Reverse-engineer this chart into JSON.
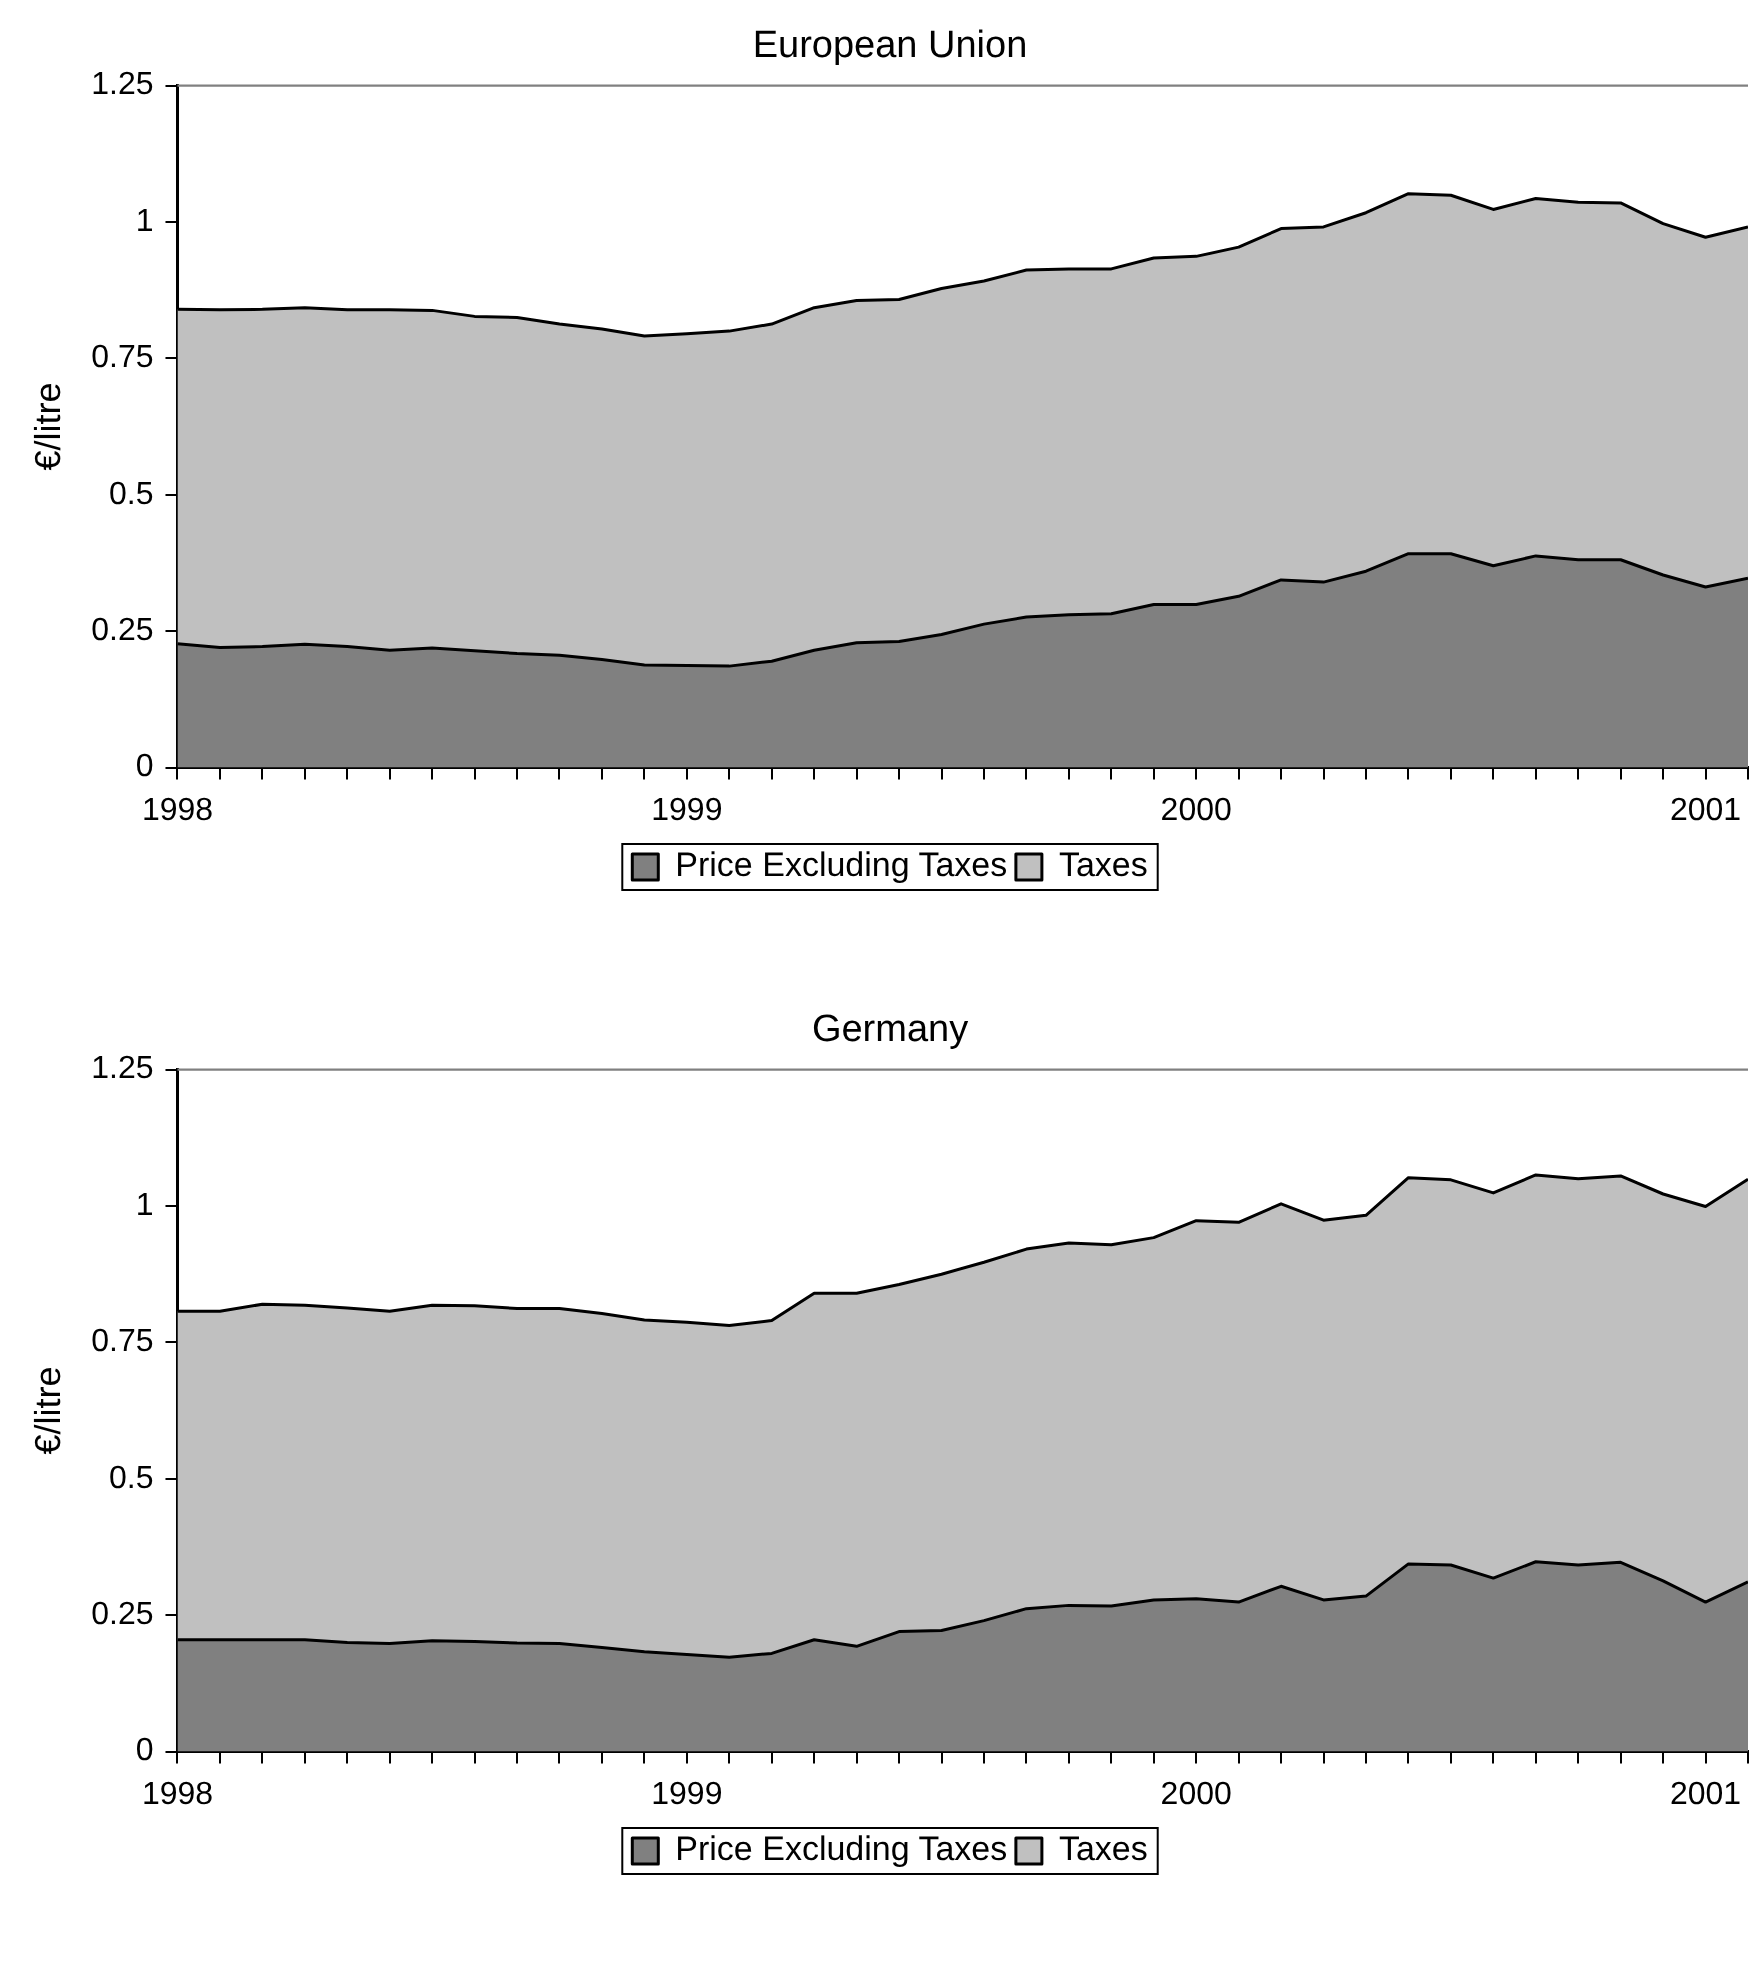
{
  "chart_data": [
    {
      "type": "area",
      "title": "European Union",
      "ylabel": "€/litre",
      "stacked": true,
      "legend": "bottom",
      "x": [
        "1998-01",
        "1998-02",
        "1998-03",
        "1998-04",
        "1998-05",
        "1998-06",
        "1998-07",
        "1998-08",
        "1998-09",
        "1998-10",
        "1998-11",
        "1998-12",
        "1999-01",
        "1999-02",
        "1999-03",
        "1999-04",
        "1999-05",
        "1999-06",
        "1999-07",
        "1999-08",
        "1999-09",
        "1999-10",
        "1999-11",
        "1999-12",
        "2000-01",
        "2000-02",
        "2000-03",
        "2000-04",
        "2000-05",
        "2000-06",
        "2000-07",
        "2000-08",
        "2000-09",
        "2000-10",
        "2000-11",
        "2000-12",
        "2001-01",
        "2001-02"
      ],
      "series": [
        {
          "name": "Price Excluding Taxes",
          "color": "#808080",
          "values": [
            0.227,
            0.22,
            0.222,
            0.226,
            0.222,
            0.215,
            0.219,
            0.214,
            0.209,
            0.206,
            0.198,
            0.188,
            0.187,
            0.186,
            0.195,
            0.215,
            0.229,
            0.231,
            0.244,
            0.263,
            0.276,
            0.28,
            0.282,
            0.299,
            0.299,
            0.314,
            0.344,
            0.34,
            0.36,
            0.392,
            0.392,
            0.37,
            0.388,
            0.381,
            0.381,
            0.353,
            0.331,
            0.347
          ]
        },
        {
          "name": "Taxes",
          "color": "#c0c0c0",
          "values": [
            0.613,
            0.619,
            0.618,
            0.617,
            0.617,
            0.624,
            0.619,
            0.613,
            0.616,
            0.607,
            0.606,
            0.603,
            0.608,
            0.614,
            0.618,
            0.628,
            0.627,
            0.627,
            0.634,
            0.629,
            0.636,
            0.634,
            0.632,
            0.635,
            0.638,
            0.64,
            0.644,
            0.651,
            0.657,
            0.66,
            0.657,
            0.653,
            0.655,
            0.655,
            0.654,
            0.644,
            0.641,
            0.644
          ]
        }
      ],
      "xlim": [
        "1998-01",
        "2001-02"
      ],
      "xticks": [
        {
          "value": "1998-01",
          "label": "1998"
        },
        {
          "value": "1998-02",
          "label": null
        },
        {
          "value": "1998-03",
          "label": null
        },
        {
          "value": "1998-04",
          "label": null
        },
        {
          "value": "1998-05",
          "label": null
        },
        {
          "value": "1998-06",
          "label": null
        },
        {
          "value": "1998-07",
          "label": null
        },
        {
          "value": "1998-08",
          "label": null
        },
        {
          "value": "1998-09",
          "label": null
        },
        {
          "value": "1998-10",
          "label": null
        },
        {
          "value": "1998-11",
          "label": null
        },
        {
          "value": "1998-12",
          "label": null
        },
        {
          "value": "1999-01",
          "label": "1999"
        },
        {
          "value": "1999-02",
          "label": null
        },
        {
          "value": "1999-03",
          "label": null
        },
        {
          "value": "1999-04",
          "label": null
        },
        {
          "value": "1999-05",
          "label": null
        },
        {
          "value": "1999-06",
          "label": null
        },
        {
          "value": "1999-07",
          "label": null
        },
        {
          "value": "1999-08",
          "label": null
        },
        {
          "value": "1999-09",
          "label": null
        },
        {
          "value": "1999-10",
          "label": null
        },
        {
          "value": "1999-11",
          "label": null
        },
        {
          "value": "1999-12",
          "label": null
        },
        {
          "value": "2000-01",
          "label": "2000"
        },
        {
          "value": "2000-02",
          "label": null
        },
        {
          "value": "2000-03",
          "label": null
        },
        {
          "value": "2000-04",
          "label": null
        },
        {
          "value": "2000-05",
          "label": null
        },
        {
          "value": "2000-06",
          "label": null
        },
        {
          "value": "2000-07",
          "label": null
        },
        {
          "value": "2000-08",
          "label": null
        },
        {
          "value": "2000-09",
          "label": null
        },
        {
          "value": "2000-10",
          "label": null
        },
        {
          "value": "2000-11",
          "label": null
        },
        {
          "value": "2000-12",
          "label": null
        },
        {
          "value": "2001-01",
          "label": "2001"
        },
        {
          "value": "2001-02",
          "label": null
        }
      ],
      "ylim": [
        0,
        1.25
      ],
      "yticks": [
        0,
        0.25,
        0.5,
        0.75,
        1,
        1.25
      ]
    },
    {
      "type": "area",
      "title": "Germany",
      "ylabel": "€/litre",
      "stacked": true,
      "legend": "bottom",
      "x": [
        "1998-01",
        "1998-02",
        "1998-03",
        "1998-04",
        "1998-05",
        "1998-06",
        "1998-07",
        "1998-08",
        "1998-09",
        "1998-10",
        "1998-11",
        "1998-12",
        "1999-01",
        "1999-02",
        "1999-03",
        "1999-04",
        "1999-05",
        "1999-06",
        "1999-07",
        "1999-08",
        "1999-09",
        "1999-10",
        "1999-11",
        "1999-12",
        "2000-01",
        "2000-02",
        "2000-03",
        "2000-04",
        "2000-05",
        "2000-06",
        "2000-07",
        "2000-08",
        "2000-09",
        "2000-10",
        "2000-11",
        "2000-12",
        "2001-01",
        "2001-02"
      ],
      "series": [
        {
          "name": "Price Excluding Taxes",
          "color": "#808080",
          "values": [
            0.205,
            0.205,
            0.205,
            0.205,
            0.2,
            0.198,
            0.203,
            0.202,
            0.199,
            0.198,
            0.191,
            0.183,
            0.178,
            0.173,
            0.18,
            0.205,
            0.193,
            0.22,
            0.222,
            0.24,
            0.262,
            0.268,
            0.267,
            0.278,
            0.28,
            0.274,
            0.303,
            0.278,
            0.285,
            0.344,
            0.342,
            0.318,
            0.348,
            0.342,
            0.347,
            0.313,
            0.274,
            0.311
          ]
        },
        {
          "name": "Taxes",
          "color": "#c0c0c0",
          "values": [
            0.602,
            0.602,
            0.615,
            0.613,
            0.613,
            0.609,
            0.615,
            0.615,
            0.613,
            0.614,
            0.612,
            0.608,
            0.609,
            0.608,
            0.61,
            0.635,
            0.647,
            0.636,
            0.653,
            0.657,
            0.659,
            0.664,
            0.662,
            0.664,
            0.693,
            0.696,
            0.701,
            0.696,
            0.698,
            0.708,
            0.706,
            0.706,
            0.709,
            0.708,
            0.708,
            0.709,
            0.725,
            0.738
          ]
        }
      ],
      "xlim": [
        "1998-01",
        "2001-02"
      ],
      "xticks": [
        {
          "value": "1998-01",
          "label": "1998"
        },
        {
          "value": "1998-02",
          "label": null
        },
        {
          "value": "1998-03",
          "label": null
        },
        {
          "value": "1998-04",
          "label": null
        },
        {
          "value": "1998-05",
          "label": null
        },
        {
          "value": "1998-06",
          "label": null
        },
        {
          "value": "1998-07",
          "label": null
        },
        {
          "value": "1998-08",
          "label": null
        },
        {
          "value": "1998-09",
          "label": null
        },
        {
          "value": "1998-10",
          "label": null
        },
        {
          "value": "1998-11",
          "label": null
        },
        {
          "value": "1998-12",
          "label": null
        },
        {
          "value": "1999-01",
          "label": "1999"
        },
        {
          "value": "1999-02",
          "label": null
        },
        {
          "value": "1999-03",
          "label": null
        },
        {
          "value": "1999-04",
          "label": null
        },
        {
          "value": "1999-05",
          "label": null
        },
        {
          "value": "1999-06",
          "label": null
        },
        {
          "value": "1999-07",
          "label": null
        },
        {
          "value": "1999-08",
          "label": null
        },
        {
          "value": "1999-09",
          "label": null
        },
        {
          "value": "1999-10",
          "label": null
        },
        {
          "value": "1999-11",
          "label": null
        },
        {
          "value": "1999-12",
          "label": null
        },
        {
          "value": "2000-01",
          "label": "2000"
        },
        {
          "value": "2000-02",
          "label": null
        },
        {
          "value": "2000-03",
          "label": null
        },
        {
          "value": "2000-04",
          "label": null
        },
        {
          "value": "2000-05",
          "label": null
        },
        {
          "value": "2000-06",
          "label": null
        },
        {
          "value": "2000-07",
          "label": null
        },
        {
          "value": "2000-08",
          "label": null
        },
        {
          "value": "2000-09",
          "label": null
        },
        {
          "value": "2000-10",
          "label": null
        },
        {
          "value": "2000-11",
          "label": null
        },
        {
          "value": "2000-12",
          "label": null
        },
        {
          "value": "2001-01",
          "label": "2001"
        },
        {
          "value": "2001-02",
          "label": null
        }
      ],
      "ylim": [
        0,
        1.25
      ],
      "yticks": [
        0,
        0.25,
        0.5,
        0.75,
        1,
        1.25
      ]
    }
  ]
}
